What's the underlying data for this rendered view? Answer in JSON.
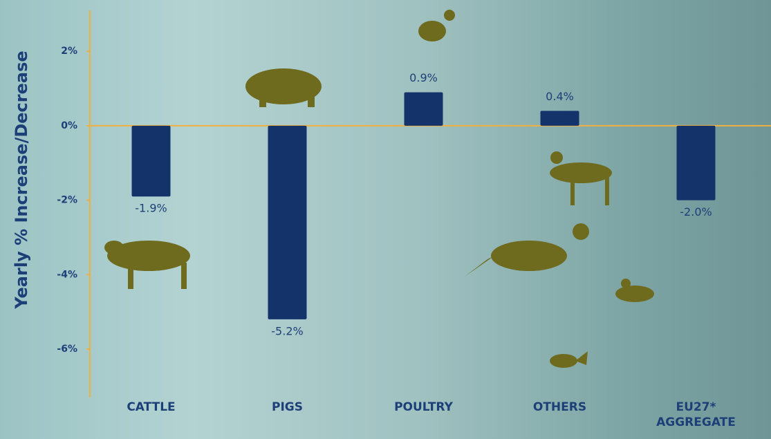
{
  "chart_data": {
    "type": "bar",
    "y_axis_label": "Yearly % Increase/Decrease",
    "categories": [
      "CATTLE",
      "PIGS",
      "POULTRY",
      "OTHERS",
      "EU27* AGGREGATE"
    ],
    "values": [
      -1.9,
      -5.2,
      0.9,
      0.4,
      -2.0
    ],
    "value_labels": [
      "-1.9%",
      "-5.2%",
      "0.9%",
      "0.4%",
      "-2.0%"
    ],
    "color": "#14336b",
    "ylim": [
      -7.3,
      3.1
    ],
    "yticks": [
      {
        "value": 2,
        "label": "2%"
      },
      {
        "value": 0,
        "label": "0%"
      },
      {
        "value": -2,
        "label": "-2%"
      },
      {
        "value": -4,
        "label": "-4%"
      },
      {
        "value": -6,
        "label": "-6%"
      }
    ]
  }
}
